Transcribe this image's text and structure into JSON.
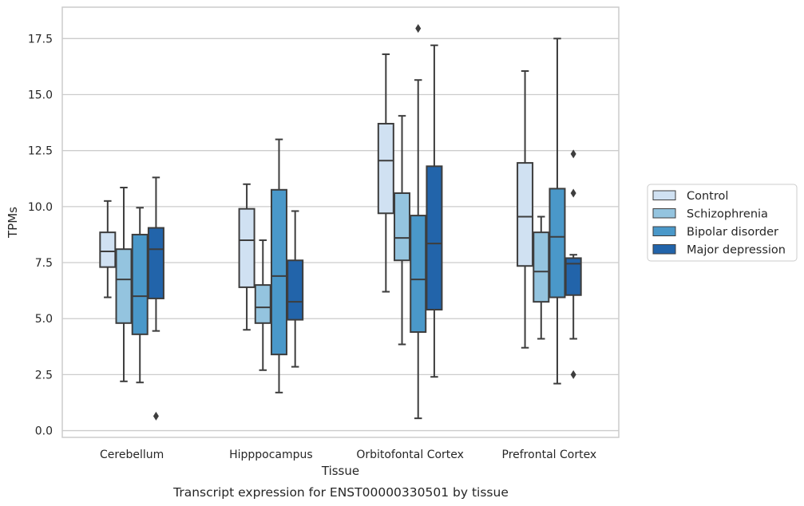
{
  "chart_data": {
    "type": "box",
    "categories": [
      "Cerebellum",
      "Hipppocampus",
      "Orbitofontal Cortex",
      "Prefrontal Cortex"
    ],
    "xlabel": "Tissue",
    "ylabel": "TPMs",
    "ylim": [
      -0.3,
      18.9
    ],
    "yticks": [
      0.0,
      2.5,
      5.0,
      7.5,
      10.0,
      12.5,
      15.0,
      17.5
    ],
    "ytick_labels": [
      "0.0",
      "2.5",
      "5.0",
      "7.5",
      "10.0",
      "12.5",
      "15.0",
      "17.5"
    ],
    "grid": "horizontal",
    "legend_position": "right",
    "caption": "Transcript expression for ENST00000330501 by tissue",
    "series": [
      {
        "name": "Control",
        "color": "#d0e1f2",
        "boxes": [
          {
            "whisker_low": 5.95,
            "q1": 7.3,
            "median": 8.0,
            "q3": 8.85,
            "whisker_high": 10.25,
            "outliers": []
          },
          {
            "whisker_low": 4.5,
            "q1": 6.4,
            "median": 8.5,
            "q3": 9.9,
            "whisker_high": 11.0,
            "outliers": []
          },
          {
            "whisker_low": 6.2,
            "q1": 9.7,
            "median": 12.05,
            "q3": 13.7,
            "whisker_high": 16.8,
            "outliers": []
          },
          {
            "whisker_low": 3.7,
            "q1": 7.35,
            "median": 9.55,
            "q3": 11.95,
            "whisker_high": 16.05,
            "outliers": []
          }
        ]
      },
      {
        "name": "Schizophrenia",
        "color": "#94c4df",
        "boxes": [
          {
            "whisker_low": 2.2,
            "q1": 4.8,
            "median": 6.75,
            "q3": 8.1,
            "whisker_high": 10.85,
            "outliers": []
          },
          {
            "whisker_low": 2.7,
            "q1": 4.8,
            "median": 5.5,
            "q3": 6.5,
            "whisker_high": 8.5,
            "outliers": []
          },
          {
            "whisker_low": 3.85,
            "q1": 7.6,
            "median": 8.6,
            "q3": 10.6,
            "whisker_high": 14.05,
            "outliers": []
          },
          {
            "whisker_low": 4.1,
            "q1": 5.75,
            "median": 7.1,
            "q3": 8.85,
            "whisker_high": 9.55,
            "outliers": []
          }
        ]
      },
      {
        "name": "Bipolar disorder",
        "color": "#4a98c9",
        "boxes": [
          {
            "whisker_low": 2.15,
            "q1": 4.3,
            "median": 6.0,
            "q3": 8.75,
            "whisker_high": 9.95,
            "outliers": []
          },
          {
            "whisker_low": 1.7,
            "q1": 3.4,
            "median": 6.9,
            "q3": 10.75,
            "whisker_high": 13.0,
            "outliers": []
          },
          {
            "whisker_low": 0.55,
            "q1": 4.4,
            "median": 6.75,
            "q3": 9.6,
            "whisker_high": 15.65,
            "outliers": [
              17.95
            ]
          },
          {
            "whisker_low": 2.1,
            "q1": 5.95,
            "median": 8.65,
            "q3": 10.8,
            "whisker_high": 17.5,
            "outliers": []
          }
        ]
      },
      {
        "name": "Major depression",
        "color": "#2264aa",
        "boxes": [
          {
            "whisker_low": 4.45,
            "q1": 5.9,
            "median": 8.1,
            "q3": 9.05,
            "whisker_high": 11.3,
            "outliers": [
              0.65
            ]
          },
          {
            "whisker_low": 2.85,
            "q1": 4.95,
            "median": 5.75,
            "q3": 7.6,
            "whisker_high": 9.8,
            "outliers": []
          },
          {
            "whisker_low": 2.4,
            "q1": 5.4,
            "median": 8.35,
            "q3": 11.8,
            "whisker_high": 17.2,
            "outliers": []
          },
          {
            "whisker_low": 4.1,
            "q1": 6.05,
            "median": 7.45,
            "q3": 7.7,
            "whisker_high": 7.85,
            "outliers": [
              2.5,
              10.6,
              12.35
            ]
          }
        ]
      }
    ]
  }
}
